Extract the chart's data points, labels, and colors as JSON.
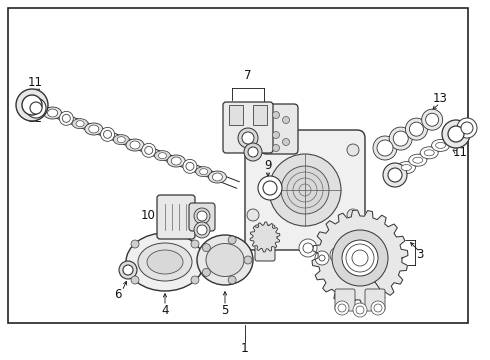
{
  "bg_color": "#ffffff",
  "border_color": "#222222",
  "lc": "#222222",
  "fig_width": 4.9,
  "fig_height": 3.6,
  "dpi": 100
}
